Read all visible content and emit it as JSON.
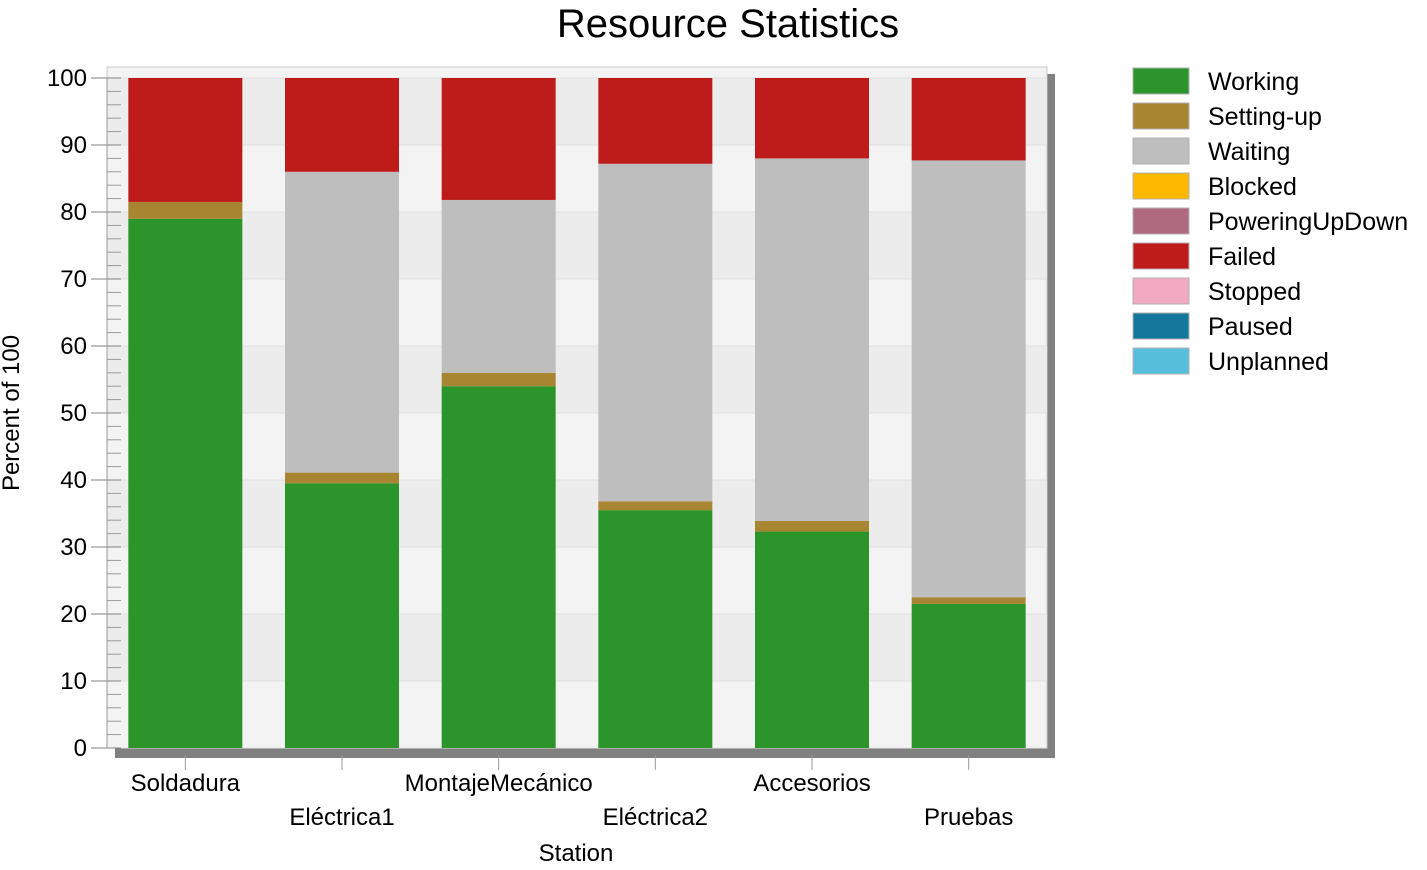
{
  "chart_data": {
    "type": "bar",
    "stacked": true,
    "title": "Resource Statistics",
    "xlabel": "Station",
    "ylabel": "Percent of 100",
    "ylim": [
      0,
      100
    ],
    "yticks": [
      0,
      10,
      20,
      30,
      40,
      50,
      60,
      70,
      80,
      90,
      100
    ],
    "categories": [
      "Soldadura",
      "Eléctrica1",
      "MontajeMecánico",
      "Eléctrica2",
      "Accesorios",
      "Pruebas"
    ],
    "series": [
      {
        "name": "Working",
        "color": "#2b952b",
        "values": [
          79,
          39.5,
          54,
          35.5,
          32.3,
          21.5
        ]
      },
      {
        "name": "Setting-up",
        "color": "#a88530",
        "values": [
          2.5,
          1.6,
          2,
          1.3,
          1.6,
          1
        ]
      },
      {
        "name": "Waiting",
        "color": "#bebebe",
        "values": [
          0,
          44.9,
          25.8,
          50.4,
          54.1,
          65.2
        ]
      },
      {
        "name": "Blocked",
        "color": "#ffb800",
        "values": [
          0,
          0,
          0,
          0,
          0,
          0
        ]
      },
      {
        "name": "PoweringUpDown",
        "color": "#b06a80",
        "values": [
          0,
          0,
          0,
          0,
          0,
          0
        ]
      },
      {
        "name": "Failed",
        "color": "#be1b1b",
        "values": [
          18.5,
          14,
          18.2,
          12.8,
          12,
          12.3
        ]
      },
      {
        "name": "Stopped",
        "color": "#f1aac1",
        "values": [
          0,
          0,
          0,
          0,
          0,
          0
        ]
      },
      {
        "name": "Paused",
        "color": "#13779c",
        "values": [
          0,
          0,
          0,
          0,
          0,
          0
        ]
      },
      {
        "name": "Unplanned",
        "color": "#57bfdc",
        "values": [
          0,
          0,
          0,
          0,
          0,
          0
        ]
      }
    ],
    "legend_position": "right",
    "grid": true
  }
}
